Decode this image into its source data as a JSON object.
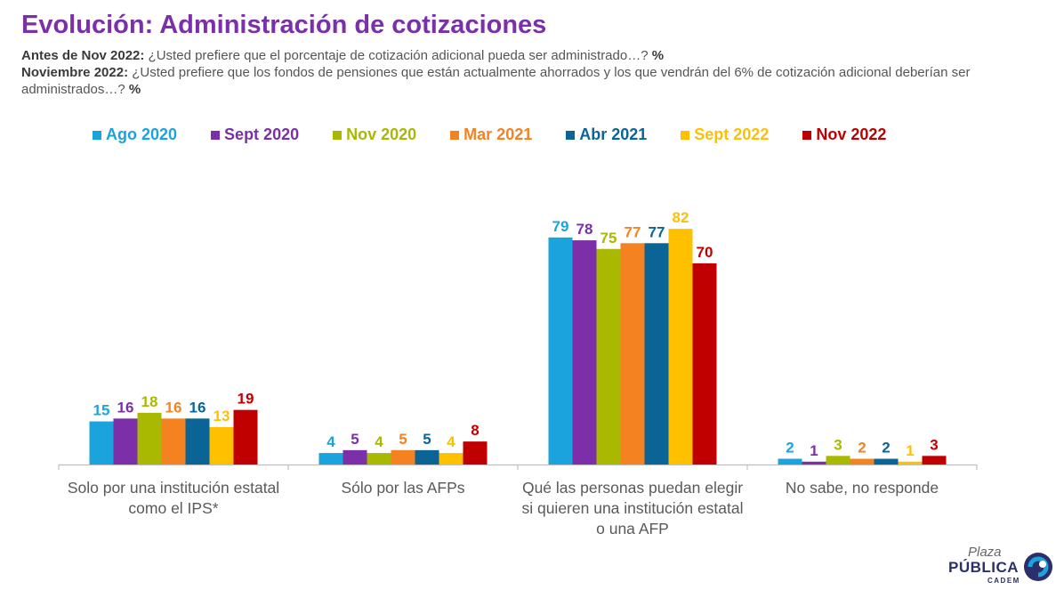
{
  "header": {
    "title": "Evolución: Administración de cotizaciones",
    "q1_label": "Antes de Nov 2022:",
    "q1_text": " ¿Usted prefiere que el porcentaje de cotización adicional pueda ser administrado…? ",
    "q1_pct": "%",
    "q2_label": "Noviembre 2022:",
    "q2_text": " ¿Usted prefiere que los fondos de pensiones que están actualmente ahorrados y los que vendrán del 6% de cotización adicional deberían ser administrados…? ",
    "q2_pct": "%"
  },
  "logo": {
    "line1": "Plaza",
    "line2": "PÚBLICA",
    "line3": "CADEM"
  },
  "chart_data": {
    "type": "bar",
    "categories": [
      "Solo por una institución estatal como el IPS*",
      "Sólo por las AFPs",
      "Qué las personas puedan elegir si quieren una institución estatal o una AFP",
      "No sabe, no responde"
    ],
    "series": [
      {
        "name": "Ago 2020",
        "color": "#1aa3dc",
        "values": [
          15,
          4,
          79,
          2
        ]
      },
      {
        "name": "Sept 2020",
        "color": "#7b2fa8",
        "values": [
          16,
          5,
          78,
          1
        ]
      },
      {
        "name": "Nov 2020",
        "color": "#a9b800",
        "values": [
          18,
          4,
          75,
          3
        ]
      },
      {
        "name": "Mar 2021",
        "color": "#f58220",
        "values": [
          16,
          5,
          77,
          2
        ]
      },
      {
        "name": "Abr 2021",
        "color": "#0b6496",
        "values": [
          16,
          5,
          77,
          2
        ]
      },
      {
        "name": "Sept 2022",
        "color": "#ffc000",
        "values": [
          13,
          4,
          82,
          1
        ]
      },
      {
        "name": "Nov 2022",
        "color": "#c00000",
        "values": [
          19,
          8,
          70,
          3
        ]
      }
    ],
    "ylim": [
      0,
      100
    ],
    "grid": false,
    "legend": "top"
  }
}
